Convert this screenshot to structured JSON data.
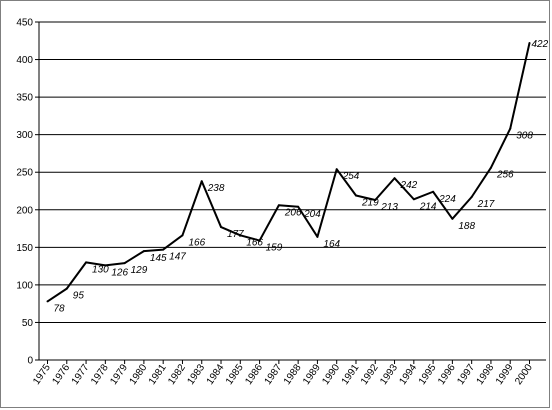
{
  "chart_data": {
    "type": "line",
    "title": "",
    "xlabel": "",
    "ylabel": "",
    "ylim": [
      0,
      450
    ],
    "y_ticks": [
      0,
      50,
      100,
      150,
      200,
      250,
      300,
      350,
      400,
      450
    ],
    "grid": "horizontal",
    "line_color": "#000000",
    "x": [
      "1975",
      "1976",
      "1977",
      "1978",
      "1979",
      "1980",
      "1981",
      "1982",
      "1983",
      "1984",
      "1985",
      "1986",
      "1987",
      "1988",
      "1989",
      "1990",
      "1991",
      "1992",
      "1993",
      "1994",
      "1995",
      "1996",
      "1997",
      "1998",
      "1999",
      "2000"
    ],
    "series": [
      {
        "values": [
          78,
          95,
          130,
          126,
          129,
          145,
          147,
          166,
          238,
          177,
          166,
          159,
          206,
          204,
          164,
          254,
          219,
          213,
          242,
          214,
          224,
          188,
          217,
          256,
          308,
          422
        ],
        "labels": [
          "78",
          "95",
          "130",
          "126",
          "129",
          "145",
          "147",
          "166",
          "238",
          "177",
          "166",
          "159",
          "206",
          "204",
          "164",
          "254",
          "219",
          "213",
          "242",
          "214",
          "224",
          "188",
          "217",
          "256",
          "308",
          "422"
        ]
      }
    ]
  }
}
